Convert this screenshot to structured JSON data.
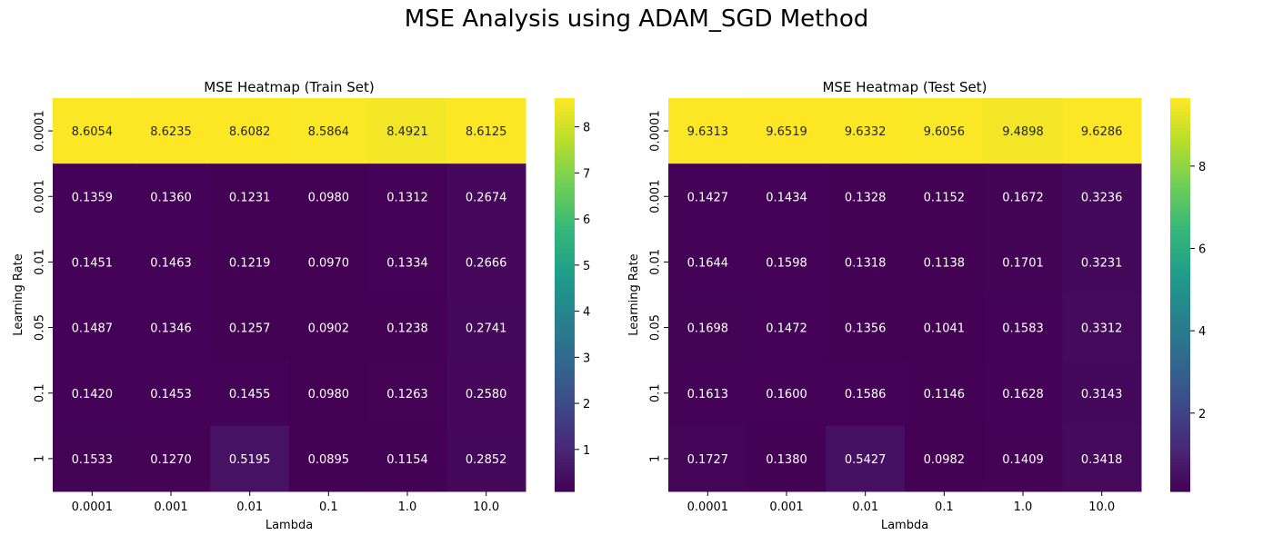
{
  "suptitle": "MSE Analysis using ADAM_SGD Method",
  "chart_data": [
    {
      "type": "heatmap",
      "title": "MSE Heatmap (Train Set)",
      "xlabel": "Lambda",
      "ylabel": "Learning Rate",
      "x_categories": [
        "0.0001",
        "0.001",
        "0.01",
        "0.1",
        "1.0",
        "10.0"
      ],
      "y_categories": [
        "0.0001",
        "0.001",
        "0.01",
        "0.05",
        "0.1",
        "1"
      ],
      "values": [
        [
          8.6054,
          8.6235,
          8.6082,
          8.5864,
          8.4921,
          8.6125
        ],
        [
          0.1359,
          0.136,
          0.1231,
          0.098,
          0.1312,
          0.2674
        ],
        [
          0.1451,
          0.1463,
          0.1219,
          0.097,
          0.1334,
          0.2666
        ],
        [
          0.1487,
          0.1346,
          0.1257,
          0.0902,
          0.1238,
          0.2741
        ],
        [
          0.142,
          0.1453,
          0.1455,
          0.098,
          0.1263,
          0.258
        ],
        [
          0.1533,
          0.127,
          0.5195,
          0.0895,
          0.1154,
          0.2852
        ]
      ],
      "colormap": "viridis",
      "colorbar_ticks": [
        1,
        2,
        3,
        4,
        5,
        6,
        7,
        8
      ]
    },
    {
      "type": "heatmap",
      "title": "MSE Heatmap (Test Set)",
      "xlabel": "Lambda",
      "ylabel": "Learning Rate",
      "x_categories": [
        "0.0001",
        "0.001",
        "0.01",
        "0.1",
        "1.0",
        "10.0"
      ],
      "y_categories": [
        "0.0001",
        "0.001",
        "0.01",
        "0.05",
        "0.1",
        "1"
      ],
      "values": [
        [
          9.6313,
          9.6519,
          9.6332,
          9.6056,
          9.4898,
          9.6286
        ],
        [
          0.1427,
          0.1434,
          0.1328,
          0.1152,
          0.1672,
          0.3236
        ],
        [
          0.1644,
          0.1598,
          0.1318,
          0.1138,
          0.1701,
          0.3231
        ],
        [
          0.1698,
          0.1472,
          0.1356,
          0.1041,
          0.1583,
          0.3312
        ],
        [
          0.1613,
          0.16,
          0.1586,
          0.1146,
          0.1628,
          0.3143
        ],
        [
          0.1727,
          0.138,
          0.5427,
          0.0982,
          0.1409,
          0.3418
        ]
      ],
      "colormap": "viridis",
      "colorbar_ticks": [
        2,
        4,
        6,
        8
      ]
    }
  ]
}
